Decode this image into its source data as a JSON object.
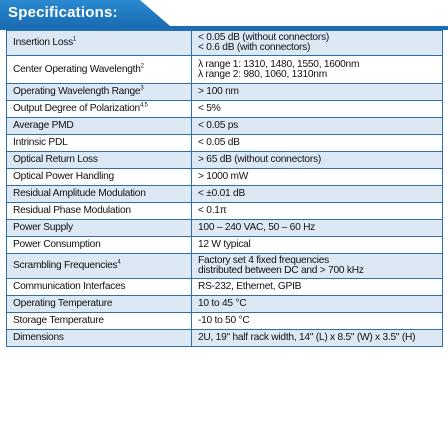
{
  "header": {
    "title": "Specifications:"
  },
  "colors": {
    "accent": "#1a6db3",
    "row_shade": "#dde8f5",
    "border": "#2d6fa8"
  },
  "rows": [
    {
      "param": "Insertion Loss",
      "sup": "1",
      "value": [
        "< 0.05 dB (without connectors)",
        "< 0.6 dB (with connectors)"
      ]
    },
    {
      "param": "Center Operating Wavelength",
      "sup": "2",
      "value": [
        "λ range 1: 1310, 1480, 1550, 1600nm",
        "λ range 2: 980, 1060, 1310nm"
      ]
    },
    {
      "param": "Operating Wavelength Range",
      "sup": "3",
      "value": [
        "> 100 nm"
      ]
    },
    {
      "param": "Output Degree of Polarization",
      "sup": "4,5",
      "value": [
        "< 5%"
      ]
    },
    {
      "param": "Average PMD",
      "sup": "",
      "value": [
        "< 0.05 ps"
      ]
    },
    {
      "param": "Intrinsic PDL",
      "sup": "",
      "value": [
        "< 0.05 dB"
      ]
    },
    {
      "param": "Optical Return Loss",
      "sup": "",
      "value": [
        "> 65 dB (without connectors)"
      ]
    },
    {
      "param": "Optical Power Handling",
      "sup": "",
      "value": [
        "> 1000 mW"
      ]
    },
    {
      "param": "Residual Amplitude Modulation",
      "sup": "",
      "value": [
        "< ±0.01 dB"
      ]
    },
    {
      "param": "Residual Phase Modulation",
      "sup": "",
      "value": [
        "< 0.1π"
      ]
    },
    {
      "param": "Power Supply",
      "sup": "",
      "value": [
        "100 – 240 VAC, 50 – 60 Hz"
      ]
    },
    {
      "param": "Power Consumption",
      "sup": "",
      "value": [
        "12 W typical"
      ]
    },
    {
      "param": "Scrambling Frequencies",
      "sup": "4",
      "value": [
        "Factory set 4 fixed frequencies",
        "distributed between DC and > 700 kHz"
      ]
    },
    {
      "param": "Communication Interfaces",
      "sup": "",
      "value": [
        "RS-232, Ethernet, GPIB"
      ]
    },
    {
      "param": "Operating Temperature",
      "sup": "",
      "value": [
        "10 to 45 °C"
      ]
    },
    {
      "param": "Storage Temperature",
      "sup": "",
      "value": [
        "-10 to 50 °C"
      ]
    },
    {
      "param": "Dimensions",
      "sup": "",
      "value": [
        "2U, 19\" half rack width, 14\" (L) x 8.5\" (W) x 3.5\" (H)"
      ]
    }
  ]
}
